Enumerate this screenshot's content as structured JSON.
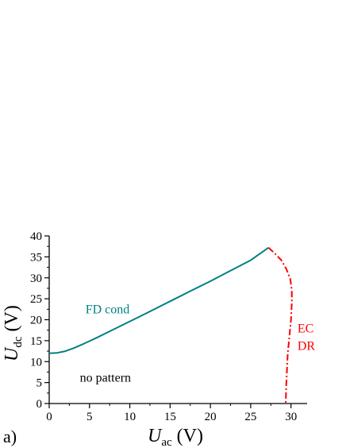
{
  "chart_data": {
    "type": "line",
    "panel_label": "a)",
    "xlabel": {
      "main": "U",
      "sub": "ac",
      "unit": "(V)"
    },
    "ylabel": {
      "main": "U",
      "sub": "dc",
      "unit": "(V)"
    },
    "xlim": [
      0,
      32
    ],
    "ylim": [
      0,
      40
    ],
    "xticks": [
      0,
      5,
      10,
      15,
      20,
      25,
      30
    ],
    "yticks": [
      0,
      5,
      10,
      15,
      20,
      25,
      30,
      35,
      40
    ],
    "grid": false,
    "colors": {
      "fd": "#008080",
      "ec": "#ff0000",
      "axis": "#000000"
    },
    "series": [
      {
        "style": "solid",
        "x": [
          0,
          1,
          2,
          3,
          4,
          5,
          6,
          8,
          10,
          12,
          15,
          18,
          20,
          22,
          25,
          27.2
        ],
        "y": [
          12,
          12.1,
          12.5,
          13.2,
          14.0,
          14.9,
          15.8,
          17.7,
          19.6,
          21.5,
          24.4,
          27.3,
          29.2,
          31.2,
          34.2,
          37.2
        ]
      },
      {
        "style": "dash-dot",
        "x": [
          27.2,
          28.0,
          28.8,
          29.4,
          29.9,
          30.1,
          30.1,
          30.0,
          29.8,
          29.6,
          29.5,
          29.4,
          29.35
        ],
        "y": [
          37.2,
          35.8,
          34.2,
          32.2,
          29.8,
          27.0,
          24.0,
          20.0,
          16.0,
          12.0,
          8.0,
          4.0,
          0
        ]
      }
    ],
    "annotations": [
      {
        "text": "FD cond",
        "x": 4.5,
        "y": 21.5,
        "color": "#008080"
      },
      {
        "text": "no pattern",
        "x": 3.8,
        "y": 5.2,
        "color": "#000000"
      },
      {
        "text": "EC",
        "x": 30.8,
        "y": 17.0,
        "color": "#ff0000"
      },
      {
        "text": "DR",
        "x": 30.8,
        "y": 12.8,
        "color": "#ff0000"
      }
    ]
  }
}
